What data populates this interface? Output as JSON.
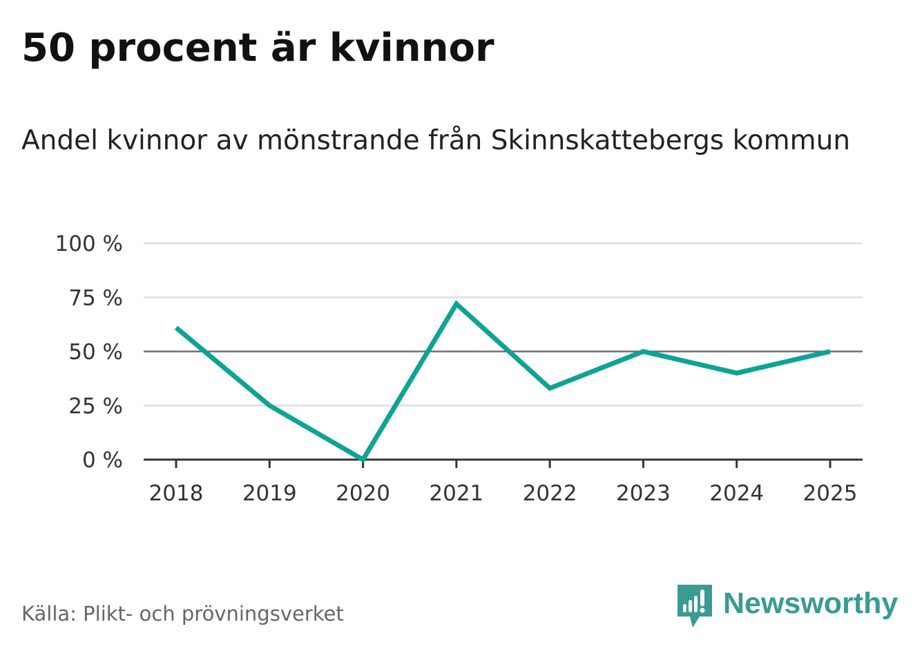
{
  "header": {
    "title": "50 procent är kvinnor",
    "subtitle": "Andel kvinnor av mönstrande från Skinnskattebergs kommun"
  },
  "footer": {
    "source": "Källa: Plikt- och prövningsverket",
    "brand": "Newsworthy"
  },
  "colors": {
    "line": "#0fa394",
    "grid": "#dedede",
    "reference": "#6e6e78",
    "axis": "#333333",
    "brand": "#3a9a94"
  },
  "chart_data": {
    "type": "line",
    "title": "50 procent är kvinnor",
    "subtitle": "Andel kvinnor av mönstrande från Skinnskattebergs kommun",
    "xlabel": "",
    "ylabel": "",
    "x": [
      "2018",
      "2019",
      "2020",
      "2021",
      "2022",
      "2023",
      "2024",
      "2025"
    ],
    "series": [
      {
        "name": "Andel kvinnor",
        "values": [
          61,
          25,
          0,
          72,
          33,
          50,
          40,
          50
        ]
      }
    ],
    "ylim": [
      0,
      100
    ],
    "yticks": [
      0,
      25,
      50,
      75,
      100
    ],
    "ytick_labels": [
      "0 %",
      "25 %",
      "50 %",
      "75 %",
      "100 %"
    ],
    "reference_line": 50,
    "grid": true,
    "legend": "none"
  }
}
